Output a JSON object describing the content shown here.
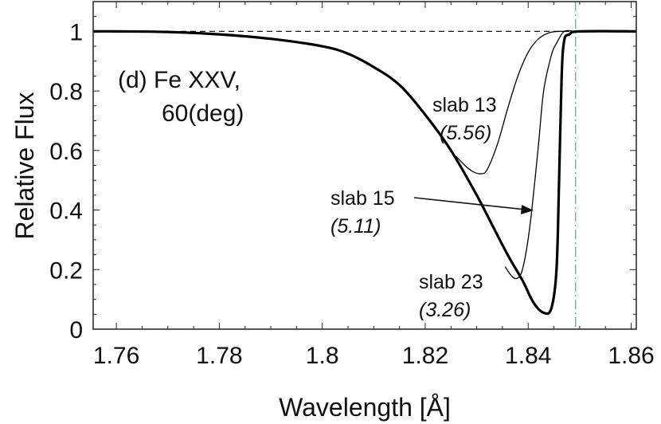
{
  "chart_data": {
    "type": "line",
    "xlabel": "Wavelength [Å]",
    "ylabel": "Relative Flux",
    "xlim": [
      1.7555,
      1.861
    ],
    "ylim": [
      0,
      1.1
    ],
    "x_ticks": [
      1.76,
      1.78,
      1.8,
      1.82,
      1.84,
      1.86
    ],
    "x_tick_labels": [
      "1.76",
      "1.78",
      "1.8",
      "1.82",
      "1.84",
      "1.86"
    ],
    "y_ticks": [
      0,
      0.2,
      0.4,
      0.6,
      0.8,
      1
    ],
    "y_tick_labels": [
      "0",
      "0.2",
      "0.4",
      "0.6",
      "0.8",
      "1"
    ],
    "grid": false,
    "panel_title": [
      "(d) Fe XXV,",
      "60(deg)"
    ],
    "reference_line": {
      "style": "dashed",
      "y": 1,
      "x": [
        1.7725,
        1.851
      ]
    },
    "vertical_line": {
      "style": "dash-dot",
      "x": 1.8492,
      "color": "#8aa6b8"
    },
    "series": [
      {
        "name": "slab 23",
        "value_label": "(3.26)",
        "width": "thick",
        "x": [
          1.7555,
          1.76,
          1.77,
          1.78,
          1.79,
          1.8,
          1.805,
          1.81,
          1.815,
          1.82,
          1.825,
          1.83,
          1.833,
          1.836,
          1.839,
          1.841,
          1.843,
          1.8445,
          1.8455,
          1.846,
          1.8465,
          1.847,
          1.848,
          1.85,
          1.861
        ],
        "y": [
          1.0,
          1.0,
          0.998,
          0.99,
          0.975,
          0.95,
          0.925,
          0.88,
          0.82,
          0.72,
          0.6,
          0.45,
          0.35,
          0.25,
          0.16,
          0.09,
          0.055,
          0.07,
          0.2,
          0.5,
          0.85,
          0.97,
          0.99,
          1.0,
          1.0
        ]
      },
      {
        "name": "slab 13",
        "value_label": "(5.56)",
        "width": "thin",
        "x": [
          1.826,
          1.828,
          1.8295,
          1.8308,
          1.832,
          1.834,
          1.836,
          1.838,
          1.84,
          1.842,
          1.844,
          1.846,
          1.848
        ],
        "y": [
          0.58,
          0.545,
          0.527,
          0.522,
          0.535,
          0.62,
          0.74,
          0.85,
          0.93,
          0.975,
          0.995,
          1.0,
          1.0
        ],
        "arrow": false
      },
      {
        "name": "slab 15",
        "value_label": "(5.11)",
        "width": "thin",
        "x": [
          1.8355,
          1.8367,
          1.8377,
          1.8387,
          1.8397,
          1.8407,
          1.842,
          1.843,
          1.8445,
          1.8455,
          1.847,
          1.849
        ],
        "y": [
          0.21,
          0.18,
          0.17,
          0.19,
          0.27,
          0.4,
          0.62,
          0.8,
          0.92,
          0.96,
          1.0,
          1.0
        ],
        "arrow": true
      }
    ]
  }
}
